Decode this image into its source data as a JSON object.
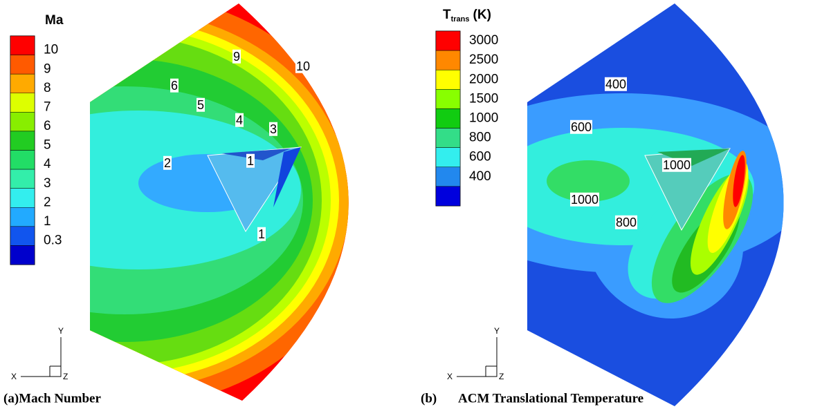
{
  "panels": [
    {
      "legend": {
        "title": "Ma",
        "levels": [
          "10",
          "9",
          "8",
          "7",
          "6",
          "5",
          "4",
          "3",
          "2",
          "1",
          "0.3"
        ]
      },
      "contour_labels": [
        "9",
        "10",
        "6",
        "5",
        "4",
        "3",
        "1",
        "2",
        "1"
      ],
      "axes": {
        "x": "X",
        "y": "Y",
        "z": "Z"
      },
      "caption": "(a)Mach Number"
    },
    {
      "legend": {
        "title": "T",
        "title_subscript": "trans",
        "title_unit": "(K)",
        "levels": [
          "3000",
          "2500",
          "2000",
          "1500",
          "1000",
          "800",
          "600",
          "400"
        ]
      },
      "contour_labels": [
        "400",
        "600",
        "1000",
        "1000",
        "800"
      ],
      "axes": {
        "x": "X",
        "y": "Y",
        "z": "Z"
      },
      "caption_label": "(b)",
      "caption": "ACM Translational Temperature"
    }
  ]
}
